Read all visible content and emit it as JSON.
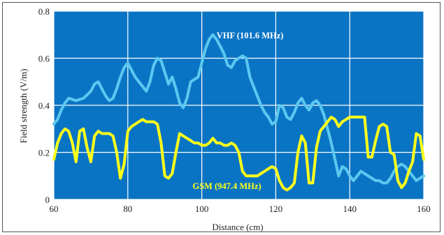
{
  "chart_data": {
    "type": "line",
    "xlabel": "Distance (cm)",
    "ylabel": "Field strength (V/m)",
    "xlim": [
      60,
      160
    ],
    "ylim": [
      0,
      0.8
    ],
    "x_ticks": [
      60,
      80,
      100,
      120,
      140,
      160
    ],
    "y_ticks": [
      0,
      0.2,
      0.4,
      0.6,
      0.8
    ],
    "grid": true,
    "background_color": "#0A74C4",
    "grid_color": "#FFFFFF",
    "series": [
      {
        "name": "VHF (101.6 MHz)",
        "color": "#5CC8F0",
        "points": [
          [
            60,
            0.32
          ],
          [
            61,
            0.34
          ],
          [
            62,
            0.38
          ],
          [
            63,
            0.41
          ],
          [
            64,
            0.43
          ],
          [
            66,
            0.42
          ],
          [
            68,
            0.43
          ],
          [
            70,
            0.46
          ],
          [
            71,
            0.49
          ],
          [
            72,
            0.5
          ],
          [
            73,
            0.47
          ],
          [
            74,
            0.44
          ],
          [
            75,
            0.42
          ],
          [
            76,
            0.43
          ],
          [
            77,
            0.47
          ],
          [
            78,
            0.52
          ],
          [
            79,
            0.56
          ],
          [
            80,
            0.58
          ],
          [
            81,
            0.55
          ],
          [
            82,
            0.52
          ],
          [
            83,
            0.5
          ],
          [
            84,
            0.48
          ],
          [
            85,
            0.46
          ],
          [
            86,
            0.5
          ],
          [
            87,
            0.57
          ],
          [
            88,
            0.6
          ],
          [
            89,
            0.59
          ],
          [
            90,
            0.54
          ],
          [
            91,
            0.49
          ],
          [
            92,
            0.52
          ],
          [
            93,
            0.47
          ],
          [
            94,
            0.41
          ],
          [
            95,
            0.39
          ],
          [
            96,
            0.43
          ],
          [
            97,
            0.5
          ],
          [
            98,
            0.51
          ],
          [
            99,
            0.52
          ],
          [
            100,
            0.58
          ],
          [
            101,
            0.64
          ],
          [
            102,
            0.68
          ],
          [
            103,
            0.7
          ],
          [
            104,
            0.68
          ],
          [
            105,
            0.65
          ],
          [
            106,
            0.62
          ],
          [
            107,
            0.57
          ],
          [
            108,
            0.56
          ],
          [
            109,
            0.59
          ],
          [
            110,
            0.6
          ],
          [
            111,
            0.61
          ],
          [
            112,
            0.6
          ],
          [
            113,
            0.52
          ],
          [
            114,
            0.48
          ],
          [
            115,
            0.44
          ],
          [
            116,
            0.4
          ],
          [
            117,
            0.37
          ],
          [
            118,
            0.35
          ],
          [
            119,
            0.32
          ],
          [
            120,
            0.33
          ],
          [
            121,
            0.4
          ],
          [
            122,
            0.39
          ],
          [
            123,
            0.35
          ],
          [
            124,
            0.34
          ],
          [
            125,
            0.37
          ],
          [
            126,
            0.41
          ],
          [
            127,
            0.43
          ],
          [
            128,
            0.4
          ],
          [
            129,
            0.38
          ],
          [
            130,
            0.41
          ],
          [
            131,
            0.42
          ],
          [
            132,
            0.4
          ],
          [
            133,
            0.36
          ],
          [
            134,
            0.3
          ],
          [
            135,
            0.24
          ],
          [
            136,
            0.17
          ],
          [
            137,
            0.1
          ],
          [
            138,
            0.14
          ],
          [
            139,
            0.13
          ],
          [
            140,
            0.1
          ],
          [
            141,
            0.08
          ],
          [
            142,
            0.1
          ],
          [
            143,
            0.12
          ],
          [
            144,
            0.11
          ],
          [
            145,
            0.1
          ],
          [
            146,
            0.09
          ],
          [
            147,
            0.08
          ],
          [
            148,
            0.08
          ],
          [
            149,
            0.07
          ],
          [
            150,
            0.07
          ],
          [
            151,
            0.09
          ],
          [
            152,
            0.12
          ],
          [
            153,
            0.14
          ],
          [
            154,
            0.15
          ],
          [
            155,
            0.14
          ],
          [
            156,
            0.12
          ],
          [
            157,
            0.1
          ],
          [
            158,
            0.08
          ],
          [
            159,
            0.09
          ],
          [
            160,
            0.1
          ]
        ]
      },
      {
        "name": "GSM (947.4 MHz)",
        "color": "#FFFF1A",
        "points": [
          [
            60,
            0.17
          ],
          [
            61,
            0.24
          ],
          [
            62,
            0.28
          ],
          [
            63,
            0.3
          ],
          [
            64,
            0.29
          ],
          [
            65,
            0.24
          ],
          [
            66,
            0.16
          ],
          [
            67,
            0.29
          ],
          [
            68,
            0.3
          ],
          [
            69,
            0.22
          ],
          [
            70,
            0.16
          ],
          [
            71,
            0.27
          ],
          [
            72,
            0.29
          ],
          [
            73,
            0.28
          ],
          [
            74,
            0.28
          ],
          [
            75,
            0.28
          ],
          [
            76,
            0.27
          ],
          [
            77,
            0.2
          ],
          [
            78,
            0.09
          ],
          [
            79,
            0.15
          ],
          [
            80,
            0.29
          ],
          [
            81,
            0.31
          ],
          [
            82,
            0.32
          ],
          [
            83,
            0.33
          ],
          [
            84,
            0.34
          ],
          [
            85,
            0.33
          ],
          [
            86,
            0.33
          ],
          [
            87,
            0.33
          ],
          [
            88,
            0.32
          ],
          [
            89,
            0.24
          ],
          [
            90,
            0.1
          ],
          [
            91,
            0.09
          ],
          [
            92,
            0.11
          ],
          [
            93,
            0.2
          ],
          [
            94,
            0.28
          ],
          [
            95,
            0.27
          ],
          [
            96,
            0.26
          ],
          [
            97,
            0.25
          ],
          [
            98,
            0.24
          ],
          [
            99,
            0.24
          ],
          [
            100,
            0.23
          ],
          [
            101,
            0.23
          ],
          [
            102,
            0.24
          ],
          [
            103,
            0.26
          ],
          [
            104,
            0.24
          ],
          [
            105,
            0.24
          ],
          [
            106,
            0.23
          ],
          [
            107,
            0.23
          ],
          [
            108,
            0.24
          ],
          [
            109,
            0.23
          ],
          [
            110,
            0.2
          ],
          [
            111,
            0.12
          ],
          [
            112,
            0.1
          ],
          [
            113,
            0.1
          ],
          [
            114,
            0.1
          ],
          [
            115,
            0.1
          ],
          [
            116,
            0.11
          ],
          [
            117,
            0.12
          ],
          [
            118,
            0.13
          ],
          [
            119,
            0.14
          ],
          [
            120,
            0.13
          ],
          [
            121,
            0.08
          ],
          [
            122,
            0.05
          ],
          [
            123,
            0.04
          ],
          [
            124,
            0.05
          ],
          [
            125,
            0.07
          ],
          [
            126,
            0.2
          ],
          [
            127,
            0.27
          ],
          [
            128,
            0.24
          ],
          [
            129,
            0.07
          ],
          [
            130,
            0.07
          ],
          [
            131,
            0.22
          ],
          [
            132,
            0.29
          ],
          [
            133,
            0.31
          ],
          [
            134,
            0.33
          ],
          [
            135,
            0.35
          ],
          [
            136,
            0.34
          ],
          [
            137,
            0.31
          ],
          [
            138,
            0.33
          ],
          [
            139,
            0.34
          ],
          [
            140,
            0.35
          ],
          [
            141,
            0.35
          ],
          [
            142,
            0.35
          ],
          [
            143,
            0.35
          ],
          [
            144,
            0.35
          ],
          [
            145,
            0.18
          ],
          [
            146,
            0.18
          ],
          [
            147,
            0.25
          ],
          [
            148,
            0.31
          ],
          [
            149,
            0.32
          ],
          [
            150,
            0.31
          ],
          [
            151,
            0.2
          ],
          [
            152,
            0.19
          ],
          [
            153,
            0.08
          ],
          [
            154,
            0.05
          ],
          [
            155,
            0.07
          ],
          [
            156,
            0.12
          ],
          [
            157,
            0.16
          ],
          [
            158,
            0.28
          ],
          [
            159,
            0.27
          ],
          [
            160,
            0.17
          ]
        ]
      }
    ]
  }
}
